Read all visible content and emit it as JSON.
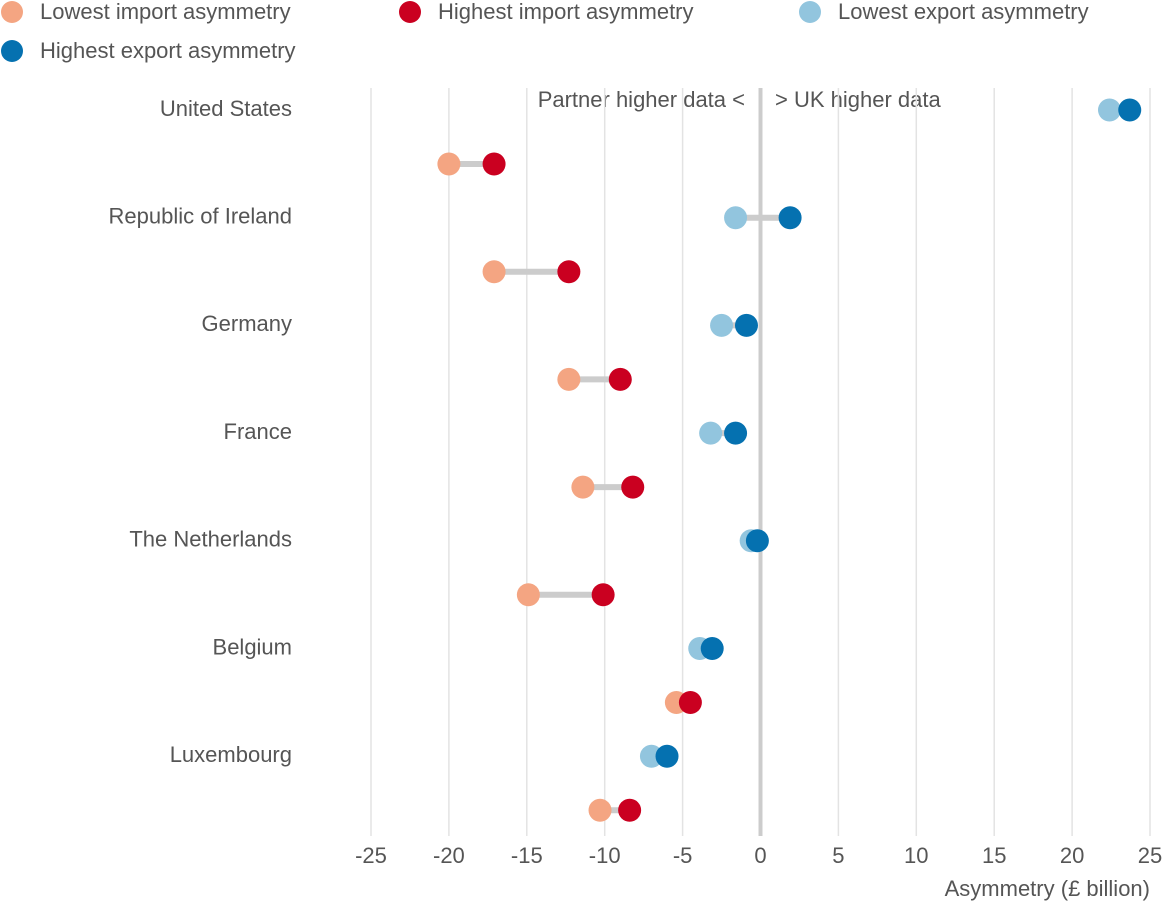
{
  "chart_data": {
    "type": "dumbbell",
    "categories": [
      "United States",
      "Republic of Ireland",
      "Germany",
      "France",
      "The Netherlands",
      "Belgium",
      "Luxembourg"
    ],
    "series": [
      {
        "name": "Lowest import asymmetry",
        "color": "#f4a582",
        "values": [
          -20.0,
          -17.1,
          -12.3,
          -11.4,
          -14.9,
          -5.4,
          -10.3
        ]
      },
      {
        "name": "Highest import asymmetry",
        "color": "#ca0020",
        "values": [
          -17.1,
          -12.3,
          -9.0,
          -8.2,
          -10.1,
          -4.5,
          -8.4
        ]
      },
      {
        "name": "Lowest export asymmetry",
        "color": "#92c5de",
        "values": [
          22.4,
          -1.6,
          -2.5,
          -3.2,
          -0.6,
          -3.9,
          -7.0
        ]
      },
      {
        "name": "Highest export asymmetry",
        "color": "#0571b0",
        "values": [
          23.7,
          1.9,
          -0.9,
          -1.6,
          -0.2,
          -3.1,
          -6.0
        ]
      }
    ],
    "annotations": [
      "Partner higher data <",
      "> UK higher data"
    ],
    "x_label": "Asymmetry (£ billion)",
    "xlim": [
      -25,
      25
    ],
    "xticks": [
      -25,
      -20,
      -15,
      -10,
      -5,
      0,
      5,
      10,
      15,
      20,
      25
    ],
    "grid": true
  }
}
